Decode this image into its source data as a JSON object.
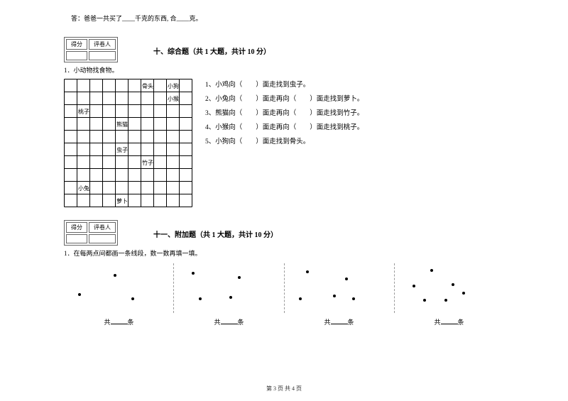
{
  "answer_prefix": "答：爸爸一共买了____千克的东西, 合____克。",
  "score_labels": {
    "score": "得分",
    "reviewer": "评卷人"
  },
  "section10": {
    "title": "十、综合题（共 1 大题，共计 10 分）",
    "q_label": "1．小动物找食物。",
    "grid": {
      "rows": 10,
      "cols": 10,
      "cell": 18,
      "labels": [
        {
          "r": 0,
          "c": 6,
          "text": "骨头"
        },
        {
          "r": 0,
          "c": 8,
          "text": "小狗"
        },
        {
          "r": 1,
          "c": 8,
          "text": "小猴"
        },
        {
          "r": 2,
          "c": 1,
          "text": "桃子"
        },
        {
          "r": 3,
          "c": 4,
          "text": "熊猫"
        },
        {
          "r": 5,
          "c": 4,
          "text": "虫子"
        },
        {
          "r": 6,
          "c": 6,
          "text": "竹子"
        },
        {
          "r": 8,
          "c": 1,
          "text": "小兔"
        },
        {
          "r": 9,
          "c": 4,
          "text": "萝卜"
        }
      ],
      "border_color": "#000000",
      "label_fontsize": 8
    },
    "questions": [
      "1、小鸡向（　　）面走找到虫子。",
      "2、小兔向（　　）面走再向（　　）面走找到萝卜。",
      "3、熊猫向（　　）面走再向（　　）面走找到竹子。",
      "4、小猴向（　　）面走再向（　　）面走找到桃子。",
      "5、小狗向（　　）面走找到骨头。"
    ]
  },
  "section11": {
    "title": "十一、附加题（共 1 大题，共计 10 分）",
    "q_label": "1．在每两点间都画一条线段，数一数再填一填。",
    "groups": [
      {
        "dots": [
          [
            20,
            42
          ],
          [
            70,
            15
          ],
          [
            95,
            48
          ]
        ]
      },
      {
        "dots": [
          [
            25,
            12
          ],
          [
            90,
            18
          ],
          [
            35,
            48
          ],
          [
            78,
            46
          ]
        ]
      },
      {
        "dots": [
          [
            30,
            10
          ],
          [
            85,
            20
          ],
          [
            20,
            48
          ],
          [
            68,
            44
          ],
          [
            95,
            48
          ]
        ]
      },
      {
        "dots": [
          [
            50,
            8
          ],
          [
            25,
            30
          ],
          [
            80,
            28
          ],
          [
            40,
            50
          ],
          [
            70,
            50
          ],
          [
            95,
            40
          ]
        ]
      }
    ],
    "count_label_prefix": "共",
    "count_label_suffix": "条"
  },
  "footer": "第 3 页 共 4 页"
}
